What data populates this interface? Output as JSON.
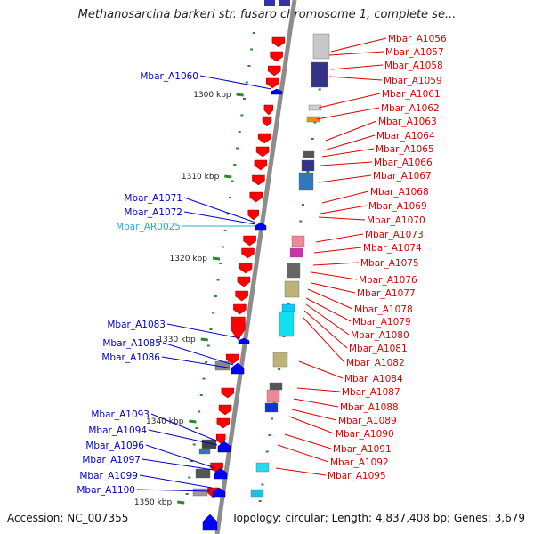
{
  "title": "Methanosarcina barkeri str. fusaro chromosome 1, complete se...",
  "footer": {
    "accession": "Accession: NC_007355",
    "topology": "Topology: circular; Length: 4,837,408 bp; Genes: 3,679"
  },
  "colors": {
    "backbone": "#8c8c8c",
    "left_gene_label": "#0000cc",
    "right_gene_label": "#e00000",
    "rna_label": "#22aadd",
    "minus_strand_arrow": "#ff0000",
    "plus_strand_arrow": "#0000ff",
    "tick": "#2a8a2a"
  },
  "scale_ticks": [
    "1300 kbp",
    "1310 kbp",
    "1320 kbp",
    "1330 kbp",
    "1340 kbp",
    "1350 kbp"
  ],
  "left_labels": [
    {
      "text": "Mbar_A1060",
      "kind": "gene"
    },
    {
      "text": "Mbar_A1071",
      "kind": "gene"
    },
    {
      "text": "Mbar_A1072",
      "kind": "gene"
    },
    {
      "text": "Mbar_AR0025",
      "kind": "rna"
    },
    {
      "text": "Mbar_A1083",
      "kind": "gene"
    },
    {
      "text": "Mbar_A1085",
      "kind": "gene"
    },
    {
      "text": "Mbar_A1086",
      "kind": "gene"
    },
    {
      "text": "Mbar_A1093",
      "kind": "gene"
    },
    {
      "text": "Mbar_A1094",
      "kind": "gene"
    },
    {
      "text": "Mbar_A1096",
      "kind": "gene"
    },
    {
      "text": "Mbar_A1097",
      "kind": "gene"
    },
    {
      "text": "Mbar_A1099",
      "kind": "gene"
    },
    {
      "text": "Mbar_A1100",
      "kind": "gene"
    }
  ],
  "right_labels": [
    "Mbar_A1056",
    "Mbar_A1057",
    "Mbar_A1058",
    "Mbar_A1059",
    "Mbar_A1061",
    "Mbar_A1062",
    "Mbar_A1063",
    "Mbar_A1064",
    "Mbar_A1065",
    "Mbar_A1066",
    "Mbar_A1067",
    "Mbar_A1068",
    "Mbar_A1069",
    "Mbar_A1070",
    "Mbar_A1073",
    "Mbar_A1074",
    "Mbar_A1075",
    "Mbar_A1076",
    "Mbar_A1077",
    "Mbar_A1078",
    "Mbar_A1079",
    "Mbar_A1080",
    "Mbar_A1081",
    "Mbar_A1082",
    "Mbar_A1084",
    "Mbar_A1087",
    "Mbar_A1088",
    "Mbar_A1089",
    "Mbar_A1090",
    "Mbar_A1091",
    "Mbar_A1092",
    "Mbar_A1095"
  ]
}
